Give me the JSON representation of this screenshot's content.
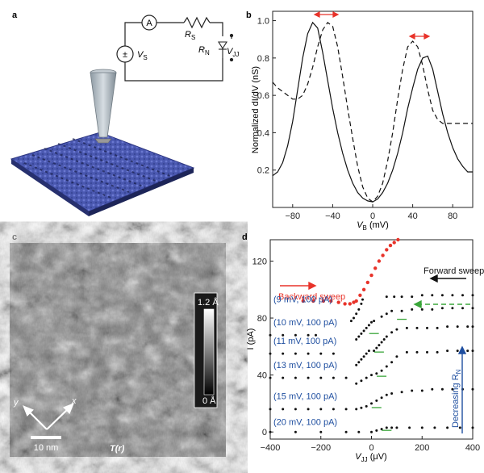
{
  "panels": {
    "a": {
      "letter": "a",
      "circuit": {
        "ammeter": "A",
        "rs_main": "R",
        "rs_sub": "S",
        "source_sign": "±",
        "vs_main": "V",
        "vs_sub": "S",
        "rn_main": "R",
        "rn_sub": "N",
        "vjj_main": "V",
        "vjj_sub": "JJ"
      }
    },
    "b": {
      "letter": "b",
      "ylabel": "Normalized dI/dV (nS)",
      "xlabel_main": "V",
      "xlabel_sub": "B",
      "xlabel_unit": " (mV)"
    },
    "c": {
      "letter": "c",
      "scale_top": "1.2 Å",
      "scale_bottom": "0 Å",
      "scalebar_label": "10 nm",
      "axis_y": "y",
      "axis_x": "x",
      "map_label": "T(r)"
    },
    "d": {
      "letter": "d",
      "ylabel": "I (pA)",
      "xlabel_main": "V",
      "xlabel_sub": "JJ",
      "xlabel_unit": " (μV)",
      "backward": "Backward sweep",
      "forward": "Forward sweep",
      "decreasing_main": "Decreasing R",
      "decreasing_sub": "N",
      "conditions": [
        "(9 mV, 100 pA)",
        "(10 mV, 100 pA)",
        "(11 mV, 100 pA)",
        "(13 mV, 100 pA)",
        "(15 mV, 100 pA)",
        "(20 mV, 100 pA)"
      ],
      "colors": {
        "backward": "#e8332a",
        "forward": "#111111",
        "arrow_green": "#3aa63a",
        "text_blue": "#1f4fa0"
      }
    }
  },
  "chart_data": [
    {
      "type": "line",
      "panel": "b",
      "xlabel": "V_B (mV)",
      "ylabel": "Normalized dI/dV (nS)",
      "xlim": [
        -100,
        100
      ],
      "ylim": [
        0,
        1.05
      ],
      "xticks": [
        -80,
        -40,
        0,
        40,
        80
      ],
      "yticks": [
        0.2,
        0.4,
        0.6,
        0.8,
        1.0
      ],
      "series": [
        {
          "style": "solid",
          "x": [
            -100,
            -95,
            -90,
            -85,
            -80,
            -75,
            -70,
            -65,
            -60,
            -55,
            -50,
            -45,
            -40,
            -35,
            -30,
            -25,
            -20,
            -15,
            -10,
            -5,
            0,
            5,
            10,
            15,
            20,
            25,
            30,
            35,
            40,
            45,
            50,
            55,
            60,
            65,
            70,
            75,
            80,
            85,
            90,
            95,
            100
          ],
          "y": [
            0.17,
            0.19,
            0.24,
            0.33,
            0.46,
            0.63,
            0.8,
            0.93,
            0.99,
            0.96,
            0.83,
            0.68,
            0.53,
            0.4,
            0.29,
            0.2,
            0.13,
            0.08,
            0.05,
            0.035,
            0.03,
            0.045,
            0.08,
            0.13,
            0.2,
            0.29,
            0.4,
            0.53,
            0.64,
            0.74,
            0.8,
            0.81,
            0.74,
            0.62,
            0.5,
            0.4,
            0.32,
            0.26,
            0.22,
            0.19,
            0.19
          ]
        },
        {
          "style": "dashed",
          "x": [
            -100,
            -95,
            -90,
            -85,
            -80,
            -75,
            -70,
            -65,
            -60,
            -55,
            -50,
            -45,
            -40,
            -35,
            -30,
            -25,
            -20,
            -15,
            -10,
            -5,
            0,
            5,
            10,
            15,
            20,
            25,
            30,
            35,
            40,
            45,
            50,
            55,
            60,
            65,
            70,
            75,
            80,
            85,
            90,
            95,
            100
          ],
          "y": [
            0.67,
            0.64,
            0.62,
            0.6,
            0.58,
            0.58,
            0.6,
            0.66,
            0.75,
            0.86,
            0.95,
            0.99,
            0.97,
            0.86,
            0.7,
            0.53,
            0.37,
            0.22,
            0.11,
            0.05,
            0.03,
            0.06,
            0.13,
            0.25,
            0.4,
            0.58,
            0.74,
            0.86,
            0.89,
            0.86,
            0.76,
            0.63,
            0.52,
            0.47,
            0.45,
            0.45,
            0.45,
            0.45,
            0.45,
            0.45,
            0.45
          ]
        }
      ]
    },
    {
      "type": "scatter",
      "panel": "d",
      "xlabel": "V_JJ (μV)",
      "ylabel": "I (pA)",
      "xlim": [
        -400,
        400
      ],
      "ylim": [
        -5,
        135
      ],
      "xticks": [
        -400,
        -200,
        0,
        200,
        400
      ],
      "yticks": [
        0,
        40,
        80,
        120
      ],
      "series": [
        {
          "name": "Backward sweep",
          "x": [
            -270,
            -230,
            -190,
            -160,
            -130,
            -105,
            -85,
            -70,
            -60,
            -45,
            -30,
            -15,
            0,
            15,
            30,
            45,
            60,
            75,
            90,
            105
          ],
          "y": [
            92,
            92,
            92,
            92,
            91,
            90,
            90,
            91,
            92,
            96,
            100,
            105,
            110,
            115,
            120,
            124,
            128,
            131,
            133,
            135
          ]
        },
        {
          "name": "(9 mV, 100 pA)",
          "x": [
            -80,
            -70,
            -60,
            -50,
            -40,
            -35,
            60,
            90,
            120,
            160,
            200,
            240,
            280,
            320,
            360,
            400
          ],
          "y": [
            78,
            80,
            83,
            86,
            90,
            93,
            95,
            95,
            95,
            95,
            96,
            96,
            96,
            96,
            96,
            96
          ]
        },
        {
          "name": "(10 mV, 100 pA)",
          "x": [
            -400,
            -350,
            -300,
            -250,
            -220,
            -60,
            -50,
            -40,
            -30,
            -20,
            -10,
            0,
            10,
            40,
            60,
            80,
            120,
            160,
            200,
            240,
            280,
            320,
            360,
            400
          ],
          "y": [
            68,
            68,
            68,
            68,
            68,
            65,
            67,
            69,
            71,
            73,
            75,
            77,
            78,
            81,
            83,
            85,
            85,
            86,
            86,
            86,
            87,
            87,
            87,
            87
          ]
        },
        {
          "name": "(11 mV, 100 pA)",
          "x": [
            -400,
            -350,
            -300,
            -250,
            -200,
            -150,
            -60,
            -50,
            -40,
            -30,
            -20,
            -10,
            10,
            20,
            30,
            40,
            50,
            60,
            80,
            100,
            140,
            180,
            220,
            260,
            300,
            340,
            380,
            400
          ],
          "y": [
            55,
            55,
            55,
            55,
            55,
            55,
            47,
            49,
            51,
            53,
            55,
            57,
            57,
            59,
            61,
            63,
            65,
            67,
            70,
            72,
            73,
            73,
            73,
            73,
            74,
            74,
            74,
            74
          ]
        },
        {
          "name": "(13 mV, 100 pA)",
          "x": [
            -400,
            -350,
            -300,
            -250,
            -200,
            -150,
            -100,
            -60,
            -40,
            -20,
            0,
            20,
            40,
            60,
            80,
            100,
            140,
            180,
            220,
            260,
            300,
            340,
            380,
            400
          ],
          "y": [
            38,
            38,
            38,
            38,
            38,
            38,
            38,
            34,
            36,
            38,
            40,
            41,
            43,
            46,
            49,
            53,
            56,
            56,
            56,
            56,
            57,
            57,
            57,
            57
          ]
        },
        {
          "name": "(15 mV, 100 pA)",
          "x": [
            -400,
            -350,
            -300,
            -250,
            -200,
            -150,
            -100,
            -60,
            -40,
            -20,
            0,
            20,
            40,
            60,
            80,
            120,
            160,
            200,
            240,
            280,
            320,
            360,
            400
          ],
          "y": [
            16,
            16,
            16,
            16,
            16,
            16,
            16,
            16,
            17,
            18,
            20,
            22,
            24,
            26,
            27,
            28,
            29,
            29,
            30,
            30,
            30,
            30,
            30
          ]
        },
        {
          "name": "(20 mV, 100 pA)",
          "x": [
            -400,
            -300,
            -200,
            -100,
            -50,
            0,
            20,
            40,
            60,
            80,
            100,
            150,
            200,
            250,
            300,
            350,
            400
          ],
          "y": [
            0,
            0,
            0,
            0,
            0,
            0,
            1,
            2,
            3,
            3,
            3,
            3,
            3,
            3,
            3,
            3,
            3
          ]
        }
      ]
    }
  ]
}
